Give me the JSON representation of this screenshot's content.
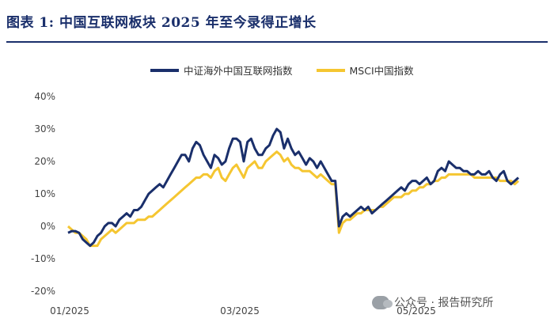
{
  "title": {
    "label": "图表",
    "number": "1:",
    "text": "中国互联网板块 2025 年至今录得正增长"
  },
  "watermark": {
    "text": "公众号 · 报告研究所"
  },
  "chart_data": {
    "type": "line",
    "ylim": [
      -20,
      40
    ],
    "y_ticks": [
      "40%",
      "30%",
      "20%",
      "10%",
      "0%",
      "-10%",
      "-20%"
    ],
    "x_ticks": [
      "01/2025",
      "03/2025",
      "05/2025"
    ],
    "legend": "top",
    "grid": false,
    "series": [
      {
        "name": "中证海外中国互联网指数",
        "color": "#1a2f6b",
        "values": [
          -2,
          -1.5,
          -1.5,
          -2,
          -4,
          -5,
          -6,
          -5,
          -3,
          -2,
          0,
          1,
          1,
          0,
          2,
          3,
          4,
          3,
          5,
          5,
          6,
          8,
          10,
          11,
          12,
          13,
          12,
          14,
          16,
          18,
          20,
          22,
          22,
          20,
          24,
          26,
          25,
          22,
          20,
          18,
          22,
          21,
          19,
          20,
          24,
          27,
          27,
          26,
          20,
          26,
          27,
          24,
          22,
          22,
          24,
          25,
          28,
          30,
          29,
          24,
          27,
          24,
          22,
          23,
          21,
          19,
          21,
          20,
          18,
          20,
          18,
          16,
          14,
          14,
          0,
          3,
          4,
          3,
          4,
          5,
          6,
          5,
          6,
          4,
          5,
          6,
          7,
          8,
          9,
          10,
          11,
          12,
          11,
          13,
          14,
          14,
          13,
          14,
          15,
          13,
          14,
          17,
          18,
          17,
          20,
          19,
          18,
          18,
          17,
          17,
          16,
          16,
          17,
          16,
          16,
          17,
          15,
          14,
          16,
          17,
          14,
          13,
          14,
          15
        ]
      },
      {
        "name": "MSCI中国指数",
        "color": "#f5c631",
        "values": [
          0,
          -1,
          -2,
          -2,
          -3,
          -4,
          -6,
          -6,
          -6,
          -4,
          -3,
          -2,
          -1,
          -2,
          -1,
          0,
          1,
          1,
          1,
          2,
          2,
          2,
          3,
          3,
          4,
          5,
          6,
          7,
          8,
          9,
          10,
          11,
          12,
          13,
          14,
          15,
          15,
          16,
          16,
          15,
          17,
          18,
          15,
          14,
          16,
          18,
          19,
          17,
          15,
          18,
          19,
          20,
          18,
          18,
          20,
          21,
          22,
          23,
          22,
          20,
          21,
          19,
          18,
          18,
          17,
          17,
          17,
          16,
          15,
          16,
          15,
          14,
          13,
          13,
          -2,
          1,
          2,
          2,
          3,
          4,
          4,
          5,
          5,
          5,
          5,
          6,
          6,
          7,
          8,
          9,
          9,
          9,
          10,
          10,
          11,
          11,
          12,
          12,
          13,
          13,
          14,
          14,
          15,
          15,
          16,
          16,
          16,
          16,
          16,
          16,
          16,
          15,
          15,
          15,
          15,
          15,
          15,
          15,
          14,
          14,
          14,
          14,
          13,
          14
        ]
      }
    ]
  }
}
